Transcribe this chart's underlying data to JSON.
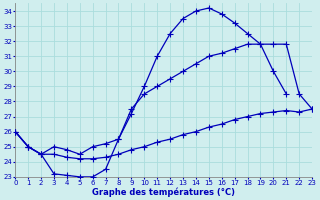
{
  "xlabel": "Graphe des températures (°C)",
  "background_color": "#d0eeee",
  "grid_color": "#aadddd",
  "line_color": "#0000bb",
  "xlim": [
    0,
    23
  ],
  "ylim": [
    23,
    34.5
  ],
  "yticks": [
    23,
    24,
    25,
    26,
    27,
    28,
    29,
    30,
    31,
    32,
    33,
    34
  ],
  "xticks": [
    0,
    1,
    2,
    3,
    4,
    5,
    6,
    7,
    8,
    9,
    10,
    11,
    12,
    13,
    14,
    15,
    16,
    17,
    18,
    19,
    20,
    21,
    22,
    23
  ],
  "series1_x": [
    0,
    1,
    2,
    3,
    4,
    5,
    6,
    7,
    8,
    9,
    10,
    11,
    12,
    13,
    14,
    15,
    16,
    17,
    18,
    19,
    20,
    21
  ],
  "series1_y": [
    26.0,
    25.0,
    24.5,
    23.2,
    23.1,
    23.0,
    23.0,
    23.5,
    25.5,
    27.2,
    29.0,
    31.0,
    32.5,
    33.5,
    34.0,
    34.2,
    33.8,
    33.2,
    32.5,
    31.8,
    30.0,
    28.5
  ],
  "series2_x": [
    0,
    1,
    2,
    3,
    4,
    5,
    6,
    7,
    8,
    9,
    10,
    11,
    12,
    13,
    14,
    15,
    16,
    17,
    18,
    19,
    20,
    21,
    22,
    23
  ],
  "series2_y": [
    26.0,
    25.0,
    24.5,
    25.0,
    24.8,
    24.5,
    25.0,
    25.2,
    25.5,
    27.5,
    28.5,
    29.0,
    29.5,
    30.0,
    30.5,
    31.0,
    31.2,
    31.5,
    31.8,
    31.8,
    31.8,
    31.8,
    28.5,
    27.5
  ],
  "series3_x": [
    0,
    1,
    2,
    3,
    4,
    5,
    6,
    7,
    8,
    9,
    10,
    11,
    12,
    13,
    14,
    15,
    16,
    17,
    18,
    19,
    20,
    21,
    22,
    23
  ],
  "series3_y": [
    26.0,
    25.0,
    24.5,
    24.5,
    24.3,
    24.2,
    24.2,
    24.3,
    24.5,
    24.8,
    25.0,
    25.3,
    25.5,
    25.8,
    26.0,
    26.3,
    26.5,
    26.8,
    27.0,
    27.2,
    27.3,
    27.4,
    27.3,
    27.5
  ]
}
